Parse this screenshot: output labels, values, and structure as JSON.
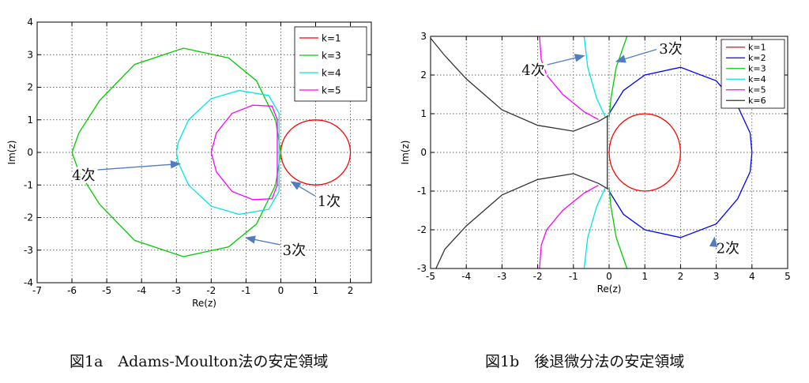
{
  "figures": {
    "fig1a_caption": "図1a　Adams-Moulton法の安定領域",
    "fig1b_caption": "図1b　後退微分法の安定領域"
  },
  "chart_data": [
    {
      "type": "line",
      "chart": "left",
      "xlabel": "Re(z)",
      "ylabel": "Im(z)",
      "xlim": [
        -7,
        2.6
      ],
      "ylim": [
        -4,
        4
      ],
      "xticks": [
        -7,
        -6,
        -5,
        -4,
        -3,
        -2,
        -1,
        0,
        1,
        2
      ],
      "yticks": [
        -4,
        -3,
        -2,
        -1,
        0,
        1,
        2,
        3,
        4
      ],
      "grid": true,
      "legend_position": "top-right",
      "series": [
        {
          "name": "k=1",
          "color": "#ff0000",
          "shape": "circle",
          "center": [
            1,
            0
          ],
          "radius": 1
        },
        {
          "name": "k=3",
          "color": "#00cc00",
          "shape": "closed",
          "points": [
            [
              0,
              0
            ],
            [
              -0.15,
              -1.0
            ],
            [
              -0.7,
              -2.2
            ],
            [
              -1.5,
              -2.9
            ],
            [
              -2.8,
              -3.2
            ],
            [
              -4.2,
              -2.7
            ],
            [
              -5.2,
              -1.6
            ],
            [
              -5.8,
              -0.6
            ],
            [
              -6,
              0
            ],
            [
              -5.8,
              0.6
            ],
            [
              -5.2,
              1.6
            ],
            [
              -4.2,
              2.7
            ],
            [
              -2.8,
              3.2
            ],
            [
              -1.5,
              2.9
            ],
            [
              -0.7,
              2.2
            ],
            [
              -0.15,
              1.0
            ],
            [
              0,
              0
            ]
          ]
        },
        {
          "name": "k=4",
          "color": "#00e5e5",
          "shape": "closed",
          "points": [
            [
              -0.05,
              0
            ],
            [
              -0.05,
              -1.2
            ],
            [
              -0.35,
              -1.75
            ],
            [
              -1.2,
              -1.9
            ],
            [
              -2.0,
              -1.65
            ],
            [
              -2.65,
              -1.0
            ],
            [
              -2.95,
              -0.3
            ],
            [
              -3,
              0
            ],
            [
              -2.95,
              0.3
            ],
            [
              -2.65,
              1.0
            ],
            [
              -2.0,
              1.65
            ],
            [
              -1.2,
              1.9
            ],
            [
              -0.35,
              1.75
            ],
            [
              -0.05,
              1.2
            ],
            [
              -0.05,
              0
            ]
          ]
        },
        {
          "name": "k=5",
          "color": "#ff00ff",
          "shape": "closed",
          "points": [
            [
              -0.1,
              0
            ],
            [
              -0.1,
              -1.0
            ],
            [
              -0.25,
              -1.42
            ],
            [
              -0.8,
              -1.45
            ],
            [
              -1.4,
              -1.2
            ],
            [
              -1.85,
              -0.6
            ],
            [
              -2.0,
              0
            ],
            [
              -1.85,
              0.6
            ],
            [
              -1.4,
              1.2
            ],
            [
              -0.8,
              1.45
            ],
            [
              -0.25,
              1.42
            ],
            [
              -0.1,
              1.0
            ],
            [
              -0.1,
              0
            ]
          ]
        }
      ],
      "annotations": [
        {
          "text": "4次",
          "x": -6.0,
          "y": -0.85,
          "arrow_to": [
            -2.9,
            -0.35
          ]
        },
        {
          "text": "1次",
          "x": 1.05,
          "y": -1.65,
          "arrow_to": [
            0.3,
            -0.9
          ]
        },
        {
          "text": "3次",
          "x": 0.05,
          "y": -3.15,
          "arrow_to": [
            -1.0,
            -2.62
          ]
        }
      ]
    },
    {
      "type": "line",
      "chart": "right",
      "xlabel": "Re(z)",
      "ylabel": "Im(z)",
      "xlim": [
        -5,
        5
      ],
      "ylim": [
        -3,
        3
      ],
      "xticks": [
        -5,
        -4,
        -3,
        -2,
        -1,
        0,
        1,
        2,
        3,
        4,
        5
      ],
      "yticks": [
        -3,
        -2,
        -1,
        0,
        1,
        2,
        3
      ],
      "grid": true,
      "legend_position": "top-right",
      "series": [
        {
          "name": "k=1",
          "color": "#ff0000",
          "shape": "circle",
          "center": [
            1,
            0
          ],
          "radius": 1
        },
        {
          "name": "k=2",
          "color": "#0000ff",
          "shape": "path",
          "points": [
            [
              0,
              1.0
            ],
            [
              0.4,
              1.6
            ],
            [
              1.0,
              2.0
            ],
            [
              2.0,
              2.2
            ],
            [
              3.0,
              1.85
            ],
            [
              3.6,
              1.2
            ],
            [
              3.95,
              0.5
            ],
            [
              4,
              0
            ],
            [
              3.95,
              -0.5
            ],
            [
              3.6,
              -1.2
            ],
            [
              3.0,
              -1.85
            ],
            [
              2.0,
              -2.2
            ],
            [
              1.0,
              -2.0
            ],
            [
              0.4,
              -1.6
            ],
            [
              0,
              -1.0
            ]
          ]
        },
        {
          "name": "k=3",
          "color": "#00cc00",
          "shape": "open",
          "branches": [
            [
              [
                0,
                0.9
              ],
              [
                0.05,
                1.4
              ],
              [
                0.2,
                2.2
              ],
              [
                0.5,
                3.0
              ]
            ],
            [
              [
                0,
                -0.9
              ],
              [
                0.05,
                -1.4
              ],
              [
                0.2,
                -2.2
              ],
              [
                0.5,
                -3.0
              ]
            ]
          ]
        },
        {
          "name": "k=4",
          "color": "#00e5e5",
          "shape": "open",
          "branches": [
            [
              [
                -0.1,
                0.9
              ],
              [
                -0.35,
                1.4
              ],
              [
                -0.6,
                2.2
              ],
              [
                -0.7,
                3.0
              ]
            ],
            [
              [
                -0.1,
                -0.9
              ],
              [
                -0.35,
                -1.4
              ],
              [
                -0.6,
                -2.2
              ],
              [
                -0.7,
                -3.0
              ]
            ]
          ]
        },
        {
          "name": "k=5",
          "color": "#ff00ff",
          "shape": "open",
          "branches": [
            [
              [
                -0.3,
                0.85
              ],
              [
                -0.7,
                1.05
              ],
              [
                -1.3,
                1.5
              ],
              [
                -1.75,
                2.0
              ],
              [
                -1.9,
                2.4
              ],
              [
                -1.95,
                3.0
              ]
            ],
            [
              [
                -0.3,
                -0.85
              ],
              [
                -0.7,
                -1.05
              ],
              [
                -1.3,
                -1.5
              ],
              [
                -1.75,
                -2.0
              ],
              [
                -1.9,
                -2.4
              ],
              [
                -1.95,
                -3.0
              ]
            ]
          ]
        },
        {
          "name": "k=6",
          "color": "#333333",
          "shape": "open",
          "branches": [
            [
              [
                -0.02,
                0.95
              ],
              [
                -0.3,
                0.8
              ],
              [
                -1.0,
                0.55
              ],
              [
                -2.0,
                0.7
              ],
              [
                -3.0,
                1.1
              ],
              [
                -4.0,
                1.9
              ],
              [
                -4.6,
                2.5
              ],
              [
                -5.0,
                2.95
              ]
            ],
            [
              [
                -0.02,
                -0.95
              ],
              [
                -0.3,
                -0.8
              ],
              [
                -1.0,
                -0.55
              ],
              [
                -2.0,
                -0.7
              ],
              [
                -3.0,
                -1.1
              ],
              [
                -4.0,
                -1.9
              ],
              [
                -4.6,
                -2.5
              ],
              [
                -4.85,
                -3.0
              ]
            ],
            [
              [
                -0.05,
                -0.95
              ],
              [
                -0.05,
                0.95
              ]
            ]
          ]
        }
      ],
      "annotations": [
        {
          "text": "4次",
          "x": -2.45,
          "y": 2.0,
          "arrow_to": [
            -0.7,
            2.5
          ]
        },
        {
          "text": "3次",
          "x": 1.4,
          "y": 2.55,
          "arrow_to": [
            0.2,
            2.35
          ]
        },
        {
          "text": "2次",
          "x": 3.0,
          "y": -2.6,
          "arrow_to": [
            2.95,
            -2.2
          ]
        }
      ]
    }
  ]
}
